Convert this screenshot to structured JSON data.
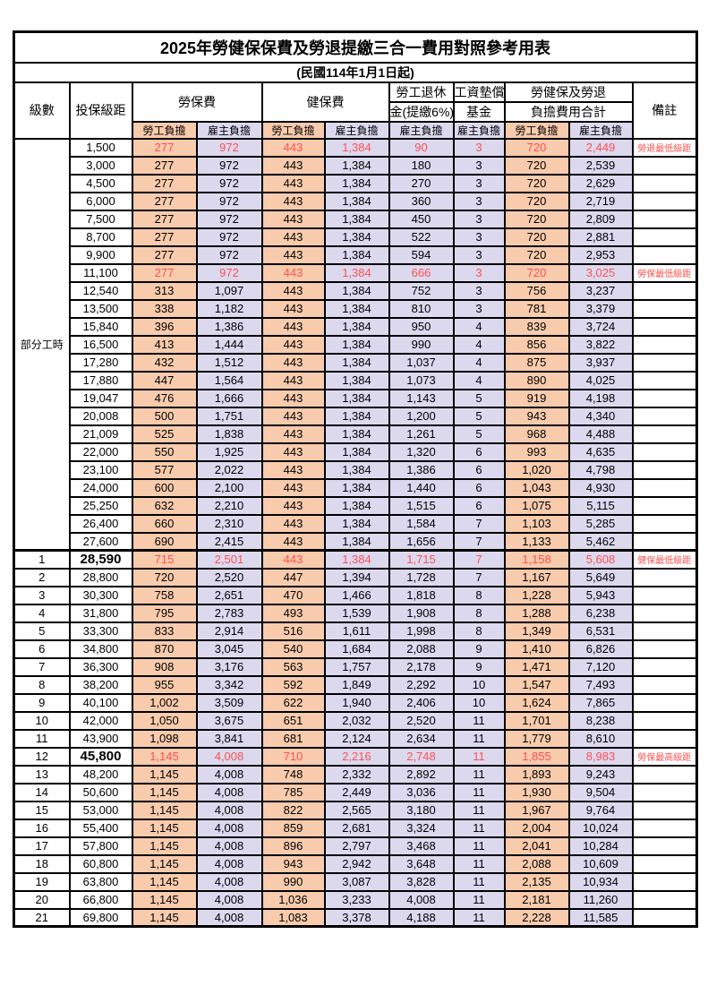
{
  "title": "2025年勞健保保費及勞退提繳三合一費用對照參考用表",
  "subtitle": "(民國114年1月1日起)",
  "header": {
    "level": "級數",
    "bracket": "投保級距",
    "labor_insurance": "勞保費",
    "health_insurance": "健保費",
    "pension_line1": "勞工退休",
    "pension_line2": "金(提繳6%)",
    "wage_fund_line1": "工資墊償",
    "wage_fund_line2": "基金",
    "total_line1": "勞健保及勞退",
    "total_line2": "負擔費用合計",
    "remark": "備註",
    "employee": "勞工負擔",
    "employer": "雇主負擔"
  },
  "part_time": {
    "label": "部分工時",
    "row_span": 23
  },
  "colors": {
    "employee_bg": "#F8CBAD",
    "employer_bg": "#DCD9EF",
    "highlight_text": "#FF5050",
    "border": "#000000"
  },
  "rows": [
    {
      "lv": "",
      "br": "1,500",
      "a": "277",
      "b": "972",
      "c": "443",
      "d": "1,384",
      "e": "90",
      "f": "3",
      "g": "720",
      "h": "2,449",
      "rm": "勞退最低級距",
      "hl": true
    },
    {
      "lv": "",
      "br": "3,000",
      "a": "277",
      "b": "972",
      "c": "443",
      "d": "1,384",
      "e": "180",
      "f": "3",
      "g": "720",
      "h": "2,539"
    },
    {
      "lv": "",
      "br": "4,500",
      "a": "277",
      "b": "972",
      "c": "443",
      "d": "1,384",
      "e": "270",
      "f": "3",
      "g": "720",
      "h": "2,629"
    },
    {
      "lv": "",
      "br": "6,000",
      "a": "277",
      "b": "972",
      "c": "443",
      "d": "1,384",
      "e": "360",
      "f": "3",
      "g": "720",
      "h": "2,719"
    },
    {
      "lv": "",
      "br": "7,500",
      "a": "277",
      "b": "972",
      "c": "443",
      "d": "1,384",
      "e": "450",
      "f": "3",
      "g": "720",
      "h": "2,809"
    },
    {
      "lv": "",
      "br": "8,700",
      "a": "277",
      "b": "972",
      "c": "443",
      "d": "1,384",
      "e": "522",
      "f": "3",
      "g": "720",
      "h": "2,881"
    },
    {
      "lv": "",
      "br": "9,900",
      "a": "277",
      "b": "972",
      "c": "443",
      "d": "1,384",
      "e": "594",
      "f": "3",
      "g": "720",
      "h": "2,953"
    },
    {
      "lv": "",
      "br": "11,100",
      "a": "277",
      "b": "972",
      "c": "443",
      "d": "1,384",
      "e": "666",
      "f": "3",
      "g": "720",
      "h": "3,025",
      "rm": "勞保最低級距",
      "hl": true
    },
    {
      "lv": "",
      "br": "12,540",
      "a": "313",
      "b": "1,097",
      "c": "443",
      "d": "1,384",
      "e": "752",
      "f": "3",
      "g": "756",
      "h": "3,237"
    },
    {
      "lv": "",
      "br": "13,500",
      "a": "338",
      "b": "1,182",
      "c": "443",
      "d": "1,384",
      "e": "810",
      "f": "3",
      "g": "781",
      "h": "3,379"
    },
    {
      "lv": "",
      "br": "15,840",
      "a": "396",
      "b": "1,386",
      "c": "443",
      "d": "1,384",
      "e": "950",
      "f": "4",
      "g": "839",
      "h": "3,724"
    },
    {
      "lv": "",
      "br": "16,500",
      "a": "413",
      "b": "1,444",
      "c": "443",
      "d": "1,384",
      "e": "990",
      "f": "4",
      "g": "856",
      "h": "3,822"
    },
    {
      "lv": "",
      "br": "17,280",
      "a": "432",
      "b": "1,512",
      "c": "443",
      "d": "1,384",
      "e": "1,037",
      "f": "4",
      "g": "875",
      "h": "3,937"
    },
    {
      "lv": "",
      "br": "17,880",
      "a": "447",
      "b": "1,564",
      "c": "443",
      "d": "1,384",
      "e": "1,073",
      "f": "4",
      "g": "890",
      "h": "4,025"
    },
    {
      "lv": "",
      "br": "19,047",
      "a": "476",
      "b": "1,666",
      "c": "443",
      "d": "1,384",
      "e": "1,143",
      "f": "5",
      "g": "919",
      "h": "4,198"
    },
    {
      "lv": "",
      "br": "20,008",
      "a": "500",
      "b": "1,751",
      "c": "443",
      "d": "1,384",
      "e": "1,200",
      "f": "5",
      "g": "943",
      "h": "4,340"
    },
    {
      "lv": "",
      "br": "21,009",
      "a": "525",
      "b": "1,838",
      "c": "443",
      "d": "1,384",
      "e": "1,261",
      "f": "5",
      "g": "968",
      "h": "4,488"
    },
    {
      "lv": "",
      "br": "22,000",
      "a": "550",
      "b": "1,925",
      "c": "443",
      "d": "1,384",
      "e": "1,320",
      "f": "6",
      "g": "993",
      "h": "4,635"
    },
    {
      "lv": "",
      "br": "23,100",
      "a": "577",
      "b": "2,022",
      "c": "443",
      "d": "1,384",
      "e": "1,386",
      "f": "6",
      "g": "1,020",
      "h": "4,798"
    },
    {
      "lv": "",
      "br": "24,000",
      "a": "600",
      "b": "2,100",
      "c": "443",
      "d": "1,384",
      "e": "1,440",
      "f": "6",
      "g": "1,043",
      "h": "4,930"
    },
    {
      "lv": "",
      "br": "25,250",
      "a": "632",
      "b": "2,210",
      "c": "443",
      "d": "1,384",
      "e": "1,515",
      "f": "6",
      "g": "1,075",
      "h": "5,115"
    },
    {
      "lv": "",
      "br": "26,400",
      "a": "660",
      "b": "2,310",
      "c": "443",
      "d": "1,384",
      "e": "1,584",
      "f": "7",
      "g": "1,103",
      "h": "5,285"
    },
    {
      "lv": "",
      "br": "27,600",
      "a": "690",
      "b": "2,415",
      "c": "443",
      "d": "1,384",
      "e": "1,656",
      "f": "7",
      "g": "1,133",
      "h": "5,462"
    },
    {
      "lv": "1",
      "br": "28,590",
      "a": "715",
      "b": "2,501",
      "c": "443",
      "d": "1,384",
      "e": "1,715",
      "f": "7",
      "g": "1,158",
      "h": "5,608",
      "rm": "健保最低級距",
      "hl": true,
      "big": true,
      "sep": true
    },
    {
      "lv": "2",
      "br": "28,800",
      "a": "720",
      "b": "2,520",
      "c": "447",
      "d": "1,394",
      "e": "1,728",
      "f": "7",
      "g": "1,167",
      "h": "5,649"
    },
    {
      "lv": "3",
      "br": "30,300",
      "a": "758",
      "b": "2,651",
      "c": "470",
      "d": "1,466",
      "e": "1,818",
      "f": "8",
      "g": "1,228",
      "h": "5,943"
    },
    {
      "lv": "4",
      "br": "31,800",
      "a": "795",
      "b": "2,783",
      "c": "493",
      "d": "1,539",
      "e": "1,908",
      "f": "8",
      "g": "1,288",
      "h": "6,238"
    },
    {
      "lv": "5",
      "br": "33,300",
      "a": "833",
      "b": "2,914",
      "c": "516",
      "d": "1,611",
      "e": "1,998",
      "f": "8",
      "g": "1,349",
      "h": "6,531"
    },
    {
      "lv": "6",
      "br": "34,800",
      "a": "870",
      "b": "3,045",
      "c": "540",
      "d": "1,684",
      "e": "2,088",
      "f": "9",
      "g": "1,410",
      "h": "6,826"
    },
    {
      "lv": "7",
      "br": "36,300",
      "a": "908",
      "b": "3,176",
      "c": "563",
      "d": "1,757",
      "e": "2,178",
      "f": "9",
      "g": "1,471",
      "h": "7,120"
    },
    {
      "lv": "8",
      "br": "38,200",
      "a": "955",
      "b": "3,342",
      "c": "592",
      "d": "1,849",
      "e": "2,292",
      "f": "10",
      "g": "1,547",
      "h": "7,493"
    },
    {
      "lv": "9",
      "br": "40,100",
      "a": "1,002",
      "b": "3,509",
      "c": "622",
      "d": "1,940",
      "e": "2,406",
      "f": "10",
      "g": "1,624",
      "h": "7,865"
    },
    {
      "lv": "10",
      "br": "42,000",
      "a": "1,050",
      "b": "3,675",
      "c": "651",
      "d": "2,032",
      "e": "2,520",
      "f": "11",
      "g": "1,701",
      "h": "8,238"
    },
    {
      "lv": "11",
      "br": "43,900",
      "a": "1,098",
      "b": "3,841",
      "c": "681",
      "d": "2,124",
      "e": "2,634",
      "f": "11",
      "g": "1,779",
      "h": "8,610"
    },
    {
      "lv": "12",
      "br": "45,800",
      "a": "1,145",
      "b": "4,008",
      "c": "710",
      "d": "2,216",
      "e": "2,748",
      "f": "11",
      "g": "1,855",
      "h": "8,983",
      "rm": "勞保最高級距",
      "hl": true,
      "big": true
    },
    {
      "lv": "13",
      "br": "48,200",
      "a": "1,145",
      "b": "4,008",
      "c": "748",
      "d": "2,332",
      "e": "2,892",
      "f": "11",
      "g": "1,893",
      "h": "9,243"
    },
    {
      "lv": "14",
      "br": "50,600",
      "a": "1,145",
      "b": "4,008",
      "c": "785",
      "d": "2,449",
      "e": "3,036",
      "f": "11",
      "g": "1,930",
      "h": "9,504"
    },
    {
      "lv": "15",
      "br": "53,000",
      "a": "1,145",
      "b": "4,008",
      "c": "822",
      "d": "2,565",
      "e": "3,180",
      "f": "11",
      "g": "1,967",
      "h": "9,764"
    },
    {
      "lv": "16",
      "br": "55,400",
      "a": "1,145",
      "b": "4,008",
      "c": "859",
      "d": "2,681",
      "e": "3,324",
      "f": "11",
      "g": "2,004",
      "h": "10,024"
    },
    {
      "lv": "17",
      "br": "57,800",
      "a": "1,145",
      "b": "4,008",
      "c": "896",
      "d": "2,797",
      "e": "3,468",
      "f": "11",
      "g": "2,041",
      "h": "10,284"
    },
    {
      "lv": "18",
      "br": "60,800",
      "a": "1,145",
      "b": "4,008",
      "c": "943",
      "d": "2,942",
      "e": "3,648",
      "f": "11",
      "g": "2,088",
      "h": "10,609"
    },
    {
      "lv": "19",
      "br": "63,800",
      "a": "1,145",
      "b": "4,008",
      "c": "990",
      "d": "3,087",
      "e": "3,828",
      "f": "11",
      "g": "2,135",
      "h": "10,934"
    },
    {
      "lv": "20",
      "br": "66,800",
      "a": "1,145",
      "b": "4,008",
      "c": "1,036",
      "d": "3,233",
      "e": "4,008",
      "f": "11",
      "g": "2,181",
      "h": "11,260"
    },
    {
      "lv": "21",
      "br": "69,800",
      "a": "1,145",
      "b": "4,008",
      "c": "1,083",
      "d": "3,378",
      "e": "4,188",
      "f": "11",
      "g": "2,228",
      "h": "11,585"
    }
  ]
}
